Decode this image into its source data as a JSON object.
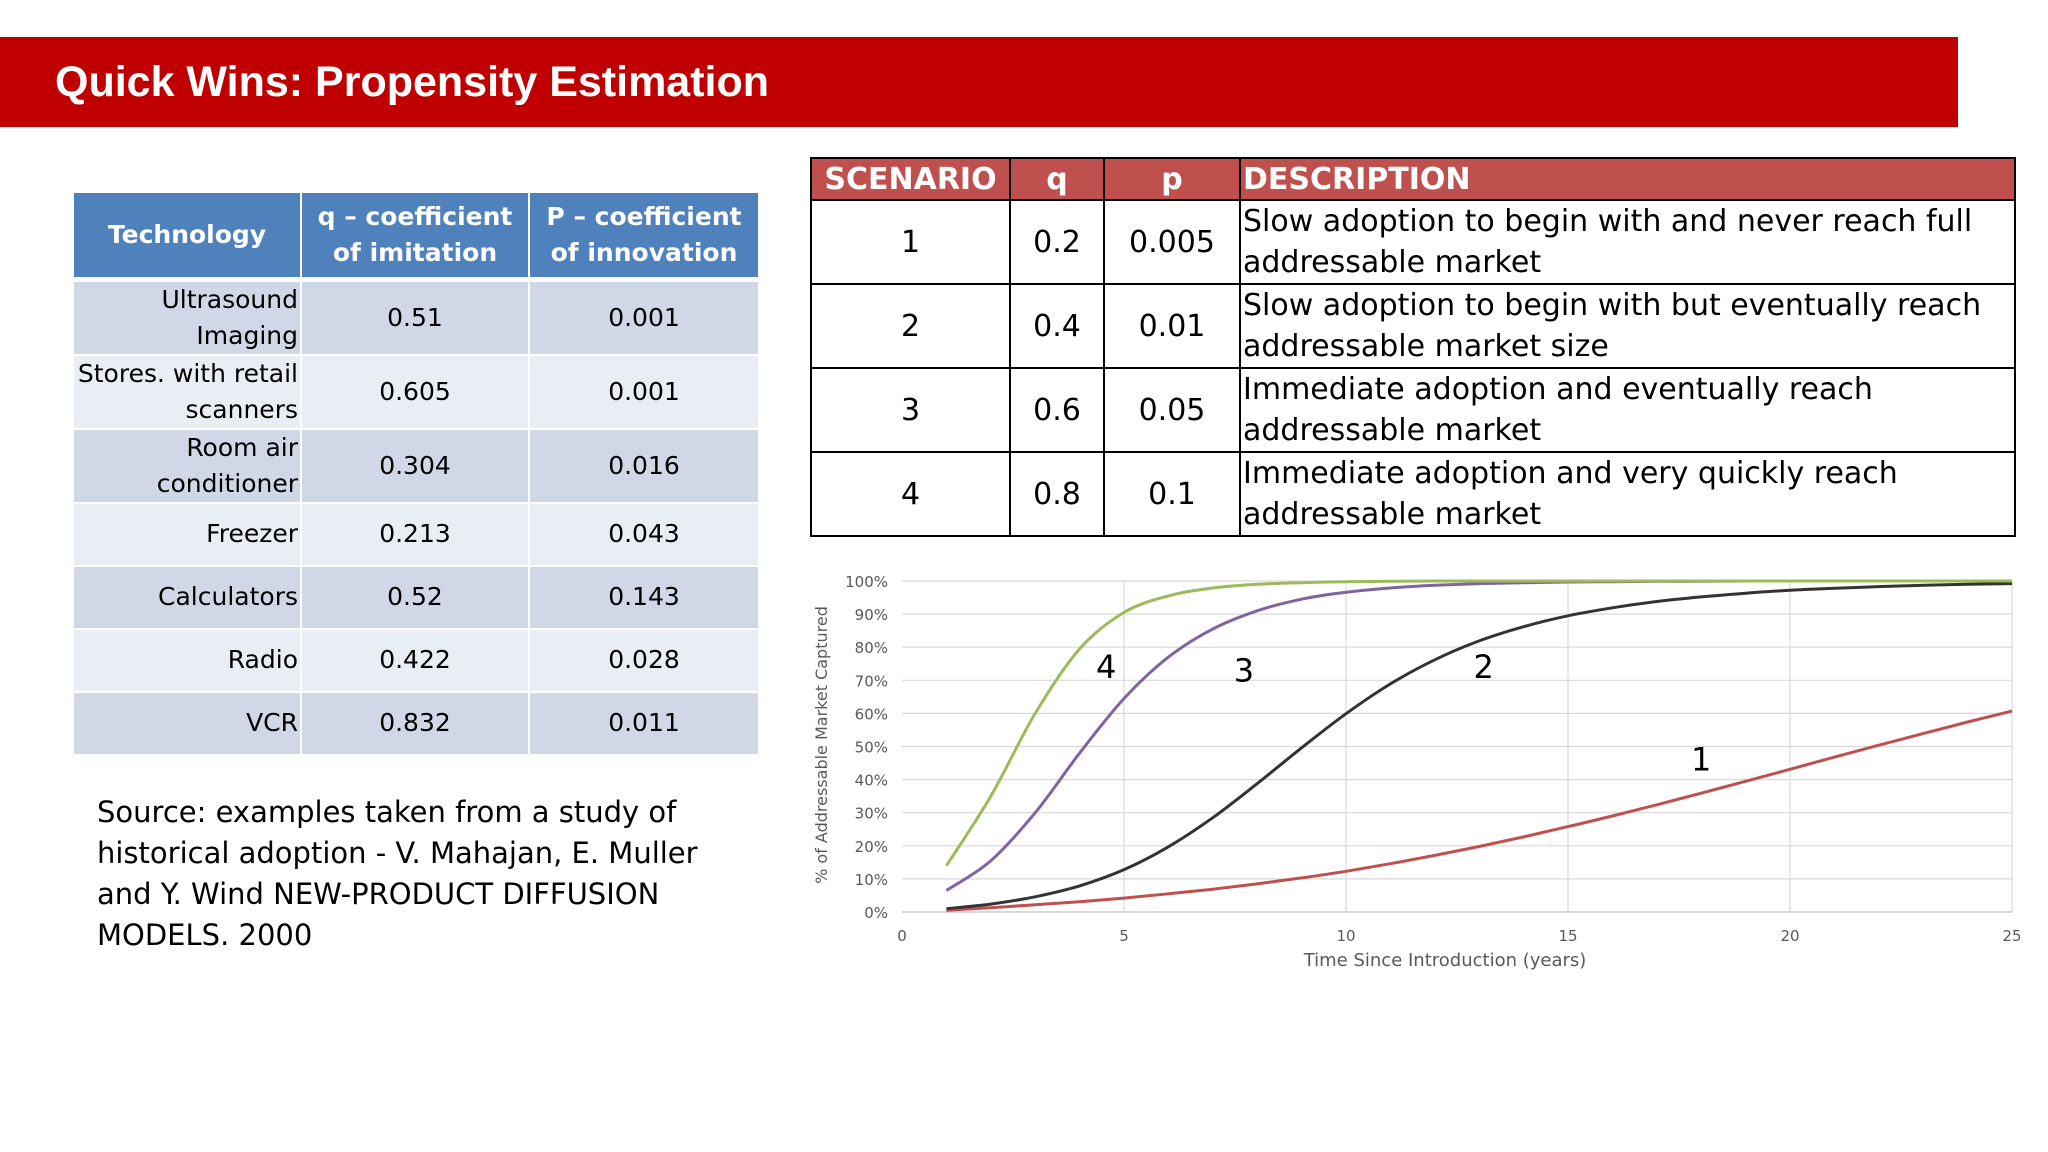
{
  "slide": {
    "title": "Quick Wins: Propensity Estimation"
  },
  "tech_table": {
    "headers": [
      "Technology",
      "q – coefficient of imitation",
      "P – coefficient of innovation"
    ],
    "rows": [
      {
        "name": "Ultrasound Imaging",
        "q": "0.51",
        "p": "0.001"
      },
      {
        "name": "Stores. with retail scanners",
        "q": "0.605",
        "p": "0.001"
      },
      {
        "name": "Room air conditioner",
        "q": "0.304",
        "p": "0.016"
      },
      {
        "name": "Freezer",
        "q": "0.213",
        "p": "0.043"
      },
      {
        "name": "Calculators",
        "q": "0.52",
        "p": "0.143"
      },
      {
        "name": "Radio",
        "q": "0.422",
        "p": "0.028"
      },
      {
        "name": "VCR",
        "q": "0.832",
        "p": "0.011"
      }
    ]
  },
  "source_note": "Source: examples taken from a study of historical adoption -   V. Mahajan, E. Muller and Y. Wind NEW-PRODUCT DIFFUSION MODELS. 2000",
  "scenario_table": {
    "headers": [
      "SCENARIO",
      "q",
      "p",
      "DESCRIPTION"
    ],
    "rows": [
      {
        "scenario": "1",
        "q": "0.2",
        "p": "0.005",
        "description": "Slow adoption to begin with and never reach full addressable market"
      },
      {
        "scenario": "2",
        "q": "0.4",
        "p": "0.01",
        "description": "Slow adoption to begin with but eventually reach addressable market size"
      },
      {
        "scenario": "3",
        "q": "0.6",
        "p": "0.05",
        "description": "Immediate adoption and eventually reach addressable market"
      },
      {
        "scenario": "4",
        "q": "0.8",
        "p": "0.1",
        "description": "Immediate adoption and very quickly reach addressable market"
      }
    ]
  },
  "chart_data": {
    "type": "line",
    "title": "",
    "xlabel": "Time Since Introduction (years)",
    "ylabel": "% of Addressable Market Captured",
    "xlim": [
      0,
      25
    ],
    "ylim": [
      0,
      100
    ],
    "x_ticks": [
      "0",
      "5",
      "10",
      "15",
      "20",
      "25"
    ],
    "y_ticks": [
      "0%",
      "10%",
      "20%",
      "30%",
      "40%",
      "50%",
      "60%",
      "70%",
      "80%",
      "90%",
      "100%"
    ],
    "grid": true,
    "x": [
      1,
      2,
      3,
      4,
      5,
      6,
      7,
      8,
      9,
      10,
      11,
      12,
      13,
      14,
      15,
      16,
      17,
      18,
      19,
      20,
      21,
      22,
      23,
      24,
      25
    ],
    "series": [
      {
        "name": "1",
        "label_at": [
          18,
          46
        ],
        "color": "#c0504d",
        "values": [
          0.5,
          1.3,
          2.2,
          3.1,
          4.2,
          5.5,
          6.9,
          8.5,
          10.3,
          12.3,
          14.6,
          17.1,
          19.8,
          22.7,
          25.8,
          29.0,
          32.4,
          35.9,
          39.5,
          43.1,
          46.8,
          50.4,
          53.9,
          57.4,
          60.7
        ]
      },
      {
        "name": "2",
        "label_at": [
          13.1,
          74
        ],
        "color": "#333333",
        "values": [
          1.0,
          2.4,
          4.6,
          7.9,
          12.8,
          19.7,
          28.5,
          38.8,
          49.6,
          59.9,
          68.9,
          76.2,
          81.9,
          86.2,
          89.5,
          91.9,
          93.8,
          95.2,
          96.3,
          97.2,
          97.8,
          98.3,
          98.7,
          99.0,
          99.2
        ]
      },
      {
        "name": "3",
        "label_at": [
          7.7,
          73
        ],
        "color": "#8064a2",
        "values": [
          6.5,
          15.5,
          30.0,
          48.0,
          64.5,
          77.0,
          85.5,
          91.0,
          94.5,
          96.6,
          97.9,
          98.7,
          99.2,
          99.5,
          99.7,
          99.8,
          99.9,
          99.9,
          100,
          100,
          100,
          100,
          100,
          100,
          100
        ]
      },
      {
        "name": "4",
        "label_at": [
          4.6,
          74
        ],
        "color": "#9bbb59",
        "values": [
          14.0,
          35.0,
          60.0,
          79.5,
          90.5,
          95.5,
          97.9,
          99.0,
          99.5,
          99.8,
          99.9,
          100,
          100,
          100,
          100,
          100,
          100,
          100,
          100,
          100,
          100,
          100,
          100,
          100,
          100
        ]
      }
    ]
  }
}
